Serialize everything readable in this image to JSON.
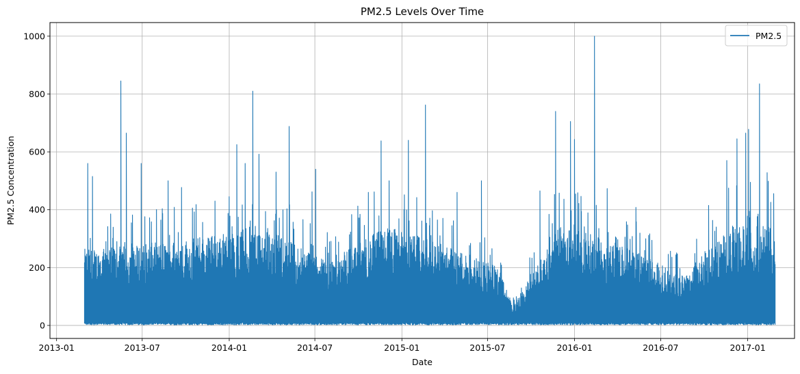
{
  "chart_data": {
    "type": "line",
    "title": "PM2.5 Levels Over Time",
    "xlabel": "Date",
    "ylabel": "PM2.5 Concentration",
    "xlim": [
      "2012-12-18",
      "2017-04-10"
    ],
    "ylim": [
      -45,
      1047
    ],
    "x_ticks": [
      "2013-01",
      "2013-07",
      "2014-01",
      "2014-07",
      "2015-01",
      "2015-07",
      "2016-01",
      "2016-07",
      "2017-01"
    ],
    "y_ticks": [
      0,
      200,
      400,
      600,
      800,
      1000
    ],
    "grid": true,
    "legend": {
      "position": "top-right",
      "entries": [
        "PM2.5"
      ]
    },
    "series": [
      {
        "name": "PM2.5",
        "color": "#1f77b4",
        "data_range": [
          "2013-03-01",
          "2017-02-28"
        ],
        "peaks": [
          {
            "date": "2013-03-08",
            "value": 560
          },
          {
            "date": "2013-03-18",
            "value": 515
          },
          {
            "date": "2013-04-15",
            "value": 290
          },
          {
            "date": "2013-05-17",
            "value": 845
          },
          {
            "date": "2013-05-28",
            "value": 665
          },
          {
            "date": "2013-06-29",
            "value": 560
          },
          {
            "date": "2013-08-25",
            "value": 500
          },
          {
            "date": "2013-09-22",
            "value": 477
          },
          {
            "date": "2013-10-23",
            "value": 418
          },
          {
            "date": "2013-12-02",
            "value": 430
          },
          {
            "date": "2014-01-17",
            "value": 625
          },
          {
            "date": "2014-02-04",
            "value": 560
          },
          {
            "date": "2014-02-20",
            "value": 810
          },
          {
            "date": "2014-03-05",
            "value": 592
          },
          {
            "date": "2014-04-10",
            "value": 530
          },
          {
            "date": "2014-05-08",
            "value": 688
          },
          {
            "date": "2014-06-25",
            "value": 462
          },
          {
            "date": "2014-07-03",
            "value": 540
          },
          {
            "date": "2014-10-22",
            "value": 460
          },
          {
            "date": "2014-11-18",
            "value": 638
          },
          {
            "date": "2014-12-05",
            "value": 500
          },
          {
            "date": "2015-01-15",
            "value": 640
          },
          {
            "date": "2015-02-20",
            "value": 762
          },
          {
            "date": "2015-04-28",
            "value": 460
          },
          {
            "date": "2015-06-18",
            "value": 500
          },
          {
            "date": "2015-10-20",
            "value": 465
          },
          {
            "date": "2015-11-22",
            "value": 740
          },
          {
            "date": "2015-12-23",
            "value": 705
          },
          {
            "date": "2016-01-01",
            "value": 643
          },
          {
            "date": "2016-02-12",
            "value": 1000
          },
          {
            "date": "2016-03-10",
            "value": 473
          },
          {
            "date": "2016-05-10",
            "value": 408
          },
          {
            "date": "2016-10-10",
            "value": 415
          },
          {
            "date": "2016-11-18",
            "value": 570
          },
          {
            "date": "2016-12-09",
            "value": 645
          },
          {
            "date": "2016-12-28",
            "value": 665
          },
          {
            "date": "2017-01-03",
            "value": 678
          },
          {
            "date": "2017-01-26",
            "value": 835
          },
          {
            "date": "2017-02-11",
            "value": 528
          }
        ],
        "typical_upper_envelope": [
          {
            "date": "2013-04-01",
            "value": 230
          },
          {
            "date": "2013-10-01",
            "value": 260
          },
          {
            "date": "2014-03-01",
            "value": 300
          },
          {
            "date": "2014-08-01",
            "value": 200
          },
          {
            "date": "2014-12-01",
            "value": 300
          },
          {
            "date": "2015-05-01",
            "value": 230
          },
          {
            "date": "2015-07-20",
            "value": 180
          },
          {
            "date": "2015-08-25",
            "value": 60
          },
          {
            "date": "2015-12-01",
            "value": 300
          },
          {
            "date": "2016-04-01",
            "value": 250
          },
          {
            "date": "2016-08-15",
            "value": 150
          },
          {
            "date": "2016-12-01",
            "value": 300
          }
        ]
      }
    ]
  }
}
